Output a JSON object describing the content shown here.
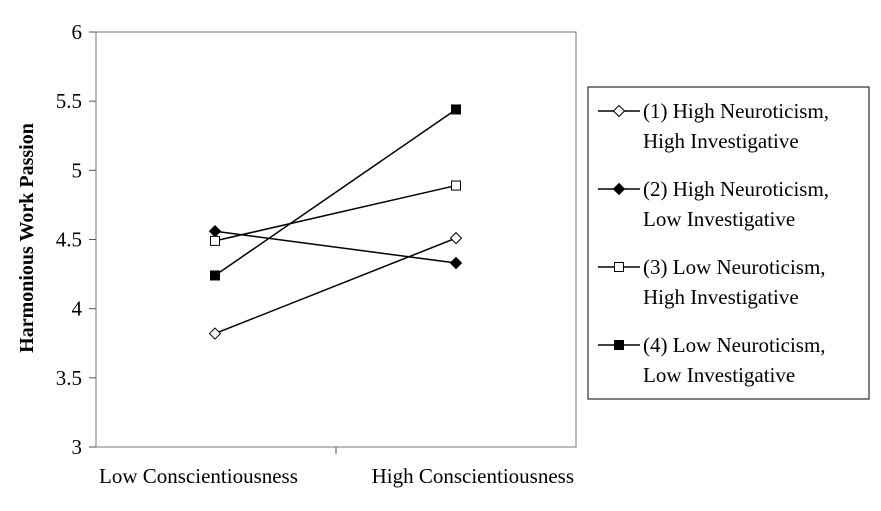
{
  "chart_data": {
    "type": "line",
    "title": "",
    "xlabel": "",
    "ylabel": "Harmonious Work Passion",
    "categories": [
      "Low Conscientiousness",
      "High Conscientiousness"
    ],
    "ylim": [
      3,
      6
    ],
    "yticks": [
      "3",
      "3.5",
      "4",
      "4.5",
      "5",
      "5.5",
      "6"
    ],
    "grid": false,
    "legend_position": "right",
    "series": [
      {
        "name": "(1) High Neuroticism, High Investigative",
        "name_lines": [
          "(1) High Neuroticism,",
          "High Investigative"
        ],
        "marker": "diamond-open",
        "values": [
          3.82,
          4.51
        ]
      },
      {
        "name": "(2) High Neuroticism, Low Investigative",
        "name_lines": [
          "(2) High Neuroticism,",
          "Low Investigative"
        ],
        "marker": "diamond-filled",
        "values": [
          4.56,
          4.33
        ]
      },
      {
        "name": "(3) Low Neuroticism, High Investigative",
        "name_lines": [
          "(3) Low Neuroticism,",
          "High Investigative"
        ],
        "marker": "square-open",
        "values": [
          4.49,
          4.89
        ]
      },
      {
        "name": "(4) Low Neuroticism, Low Investigative",
        "name_lines": [
          "(4) Low Neuroticism,",
          "Low Investigative"
        ],
        "marker": "square-filled",
        "values": [
          4.24,
          5.44
        ]
      }
    ]
  }
}
